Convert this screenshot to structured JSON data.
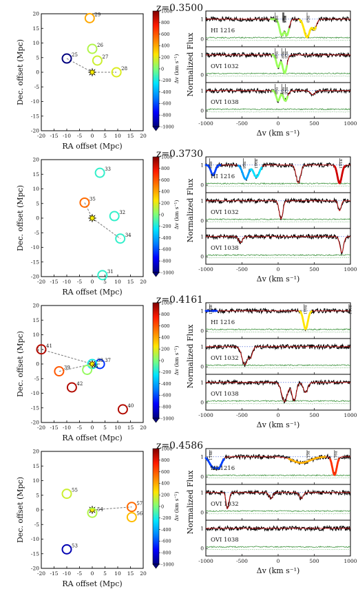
{
  "colorbar": {
    "label": "Δv (km s⁻¹)",
    "ticks": [
      1000,
      800,
      600,
      400,
      200,
      0,
      -200,
      -400,
      -600,
      -800,
      -1000
    ],
    "range": [
      -1000,
      1000
    ],
    "stops": [
      "#00007f",
      "#0000ff",
      "#0080ff",
      "#00e5ff",
      "#7dff7a",
      "#ffe500",
      "#ff7f00",
      "#ff1a00",
      "#7f0000"
    ]
  },
  "map_axes": {
    "xlabel": "RA offset (Mpc)",
    "ylabel": "Dec. offset (Mpc)",
    "xticks": [
      -20,
      -15,
      -10,
      -5,
      0,
      5,
      10,
      15,
      20
    ],
    "yticks": [
      20,
      15,
      10,
      5,
      0,
      -5,
      -10,
      -15,
      -20
    ],
    "lim": [
      -20,
      20
    ]
  },
  "spec_axes": {
    "xlabel": "Δv (km s⁻¹)",
    "ylabel": "Normalized Flux",
    "xticks": [
      -1000,
      -500,
      0,
      500,
      1000
    ],
    "xlim": [
      -1000,
      1000
    ],
    "yticks": [
      0,
      1
    ]
  },
  "chart_data": [
    {
      "type": "scatter",
      "title": "z=0.3500",
      "galaxies": [
        {
          "label": "29",
          "x": -1,
          "y": 18.5,
          "dv": 400
        },
        {
          "label": "26",
          "x": 0,
          "y": 8,
          "dv": 100
        },
        {
          "label": "27",
          "x": 2,
          "y": 4,
          "dv": 150
        },
        {
          "label": "25",
          "x": -10,
          "y": 4.7,
          "dv": -1000
        },
        {
          "label": "28",
          "x": 9.5,
          "y": 0,
          "dv": 180
        }
      ],
      "links": [
        [
          "25",
          "28"
        ]
      ],
      "spectra": [
        {
          "label": "HI 1216",
          "abs": [
            [
              50,
              0.8,
              30
            ],
            [
              120,
              0.8,
              30
            ],
            [
              400,
              0.9,
              40
            ],
            [
              500,
              0.5,
              30
            ]
          ],
          "fits": [
            {
              "range": [
                -100,
                150
              ],
              "color": "#9cff5c"
            },
            {
              "range": [
                300,
                520
              ],
              "color": "#ffe500"
            }
          ],
          "markers": [
            "88a",
            "89a",
            "90a",
            "93a",
            "85a"
          ],
          "marker_v": [
            -40,
            60,
            70,
            80,
            400
          ]
        },
        {
          "label": "OVI 1032",
          "abs": [
            [
              0,
              0.6,
              25
            ],
            [
              90,
              0.9,
              30
            ]
          ],
          "fits": [
            {
              "range": [
                -80,
                120
              ],
              "color": "#9cff5c"
            }
          ],
          "markers": [
            "86a",
            "89a",
            "93a"
          ],
          "marker_v": [
            -40,
            50,
            100
          ]
        },
        {
          "label": "OVI 1038",
          "abs": [
            [
              0,
              0.5,
              25
            ],
            [
              100,
              0.5,
              30
            ],
            [
              480,
              0.2,
              30
            ]
          ],
          "fits": [
            {
              "range": [
                -80,
                130
              ],
              "color": "#9cff5c"
            }
          ],
          "markers": [
            "86a",
            "89a",
            "93a"
          ],
          "marker_v": [
            -40,
            50,
            100
          ]
        }
      ]
    },
    {
      "type": "scatter",
      "title": "z=0.3730",
      "galaxies": [
        {
          "label": "33",
          "x": 3,
          "y": 15.5,
          "dv": -150
        },
        {
          "label": "35",
          "x": -3,
          "y": 5.3,
          "dv": 550
        },
        {
          "label": "32",
          "x": 8.7,
          "y": 0.7,
          "dv": -150
        },
        {
          "label": "34",
          "x": 11,
          "y": -7,
          "dv": -150
        },
        {
          "label": "31",
          "x": 4,
          "y": -19.5,
          "dv": -150
        }
      ],
      "links": [
        [
          "35",
          "34"
        ]
      ],
      "spectra": [
        {
          "label": "HI 1216",
          "abs": [
            [
              -900,
              0.5,
              30
            ],
            [
              -450,
              0.7,
              40
            ],
            [
              -300,
              0.6,
              40
            ],
            [
              280,
              0.9,
              30
            ],
            [
              850,
              0.9,
              30
            ]
          ],
          "fits": [
            {
              "range": [
                -1000,
                -800
              ],
              "color": "#0040ff"
            },
            {
              "range": [
                -550,
                -380
              ],
              "color": "#00a0ff"
            },
            {
              "range": [
                -380,
                -230
              ],
              "color": "#00e0ff"
            },
            {
              "range": [
                780,
                920
              ],
              "color": "#d00000"
            }
          ],
          "markers": [
            "98b",
            "99a",
            "100a",
            "101a"
          ],
          "marker_v": [
            -950,
            -480,
            -320,
            850
          ]
        },
        {
          "label": "OVI 1032",
          "abs": [
            [
              40,
              0.9,
              25
            ],
            [
              850,
              0.5,
              20
            ]
          ],
          "fits": [],
          "markers": [],
          "marker_v": []
        },
        {
          "label": "OVI 1038",
          "abs": [
            [
              -520,
              0.3,
              25
            ],
            [
              880,
              0.8,
              25
            ]
          ],
          "fits": [],
          "markers": [],
          "marker_v": []
        }
      ]
    },
    {
      "type": "scatter",
      "title": "z=0.4161",
      "galaxies": [
        {
          "label": "41",
          "x": -20,
          "y": 5,
          "dv": 900
        },
        {
          "label": "37",
          "x": 3,
          "y": 0,
          "dv": -650
        },
        {
          "label": "38",
          "x": 0,
          "y": 0,
          "dv": -200
        },
        {
          "label": "39",
          "x": -13,
          "y": -2.5,
          "dv": 600
        },
        {
          "label": "36",
          "x": -2,
          "y": -2,
          "dv": 50
        },
        {
          "label": "42",
          "x": -8,
          "y": -8,
          "dv": 900
        },
        {
          "label": "40",
          "x": 12,
          "y": -15.5,
          "dv": 900
        }
      ],
      "links": [
        [
          "41",
          "37"
        ],
        [
          "39",
          "37"
        ]
      ],
      "spectra": [
        {
          "label": "HI 1216",
          "abs": [
            [
              380,
              0.9,
              30
            ]
          ],
          "fits": [
            {
              "range": [
                -1000,
                -850
              ],
              "color": "#0030ff"
            },
            {
              "range": [
                300,
                460
              ],
              "color": "#ffe500"
            }
          ],
          "markers": [
            "108b",
            "109a",
            "110b"
          ],
          "marker_v": [
            -950,
            360,
            980
          ]
        },
        {
          "label": "OVI 1032",
          "abs": [
            [
              -460,
              0.9,
              40
            ],
            [
              -380,
              0.5,
              25
            ]
          ],
          "fits": [],
          "markers": [],
          "marker_v": []
        },
        {
          "label": "OVI 1038",
          "abs": [
            [
              90,
              0.95,
              40
            ],
            [
              220,
              0.9,
              30
            ],
            [
              380,
              0.5,
              30
            ]
          ],
          "fits": [],
          "markers": [],
          "marker_v": []
        }
      ]
    },
    {
      "type": "scatter",
      "title": "z=0.4586",
      "galaxies": [
        {
          "label": "55",
          "x": -10,
          "y": 5.5,
          "dv": 150
        },
        {
          "label": "54",
          "x": 0,
          "y": -1,
          "dv": 100
        },
        {
          "label": "57",
          "x": 15.5,
          "y": 1,
          "dv": 550
        },
        {
          "label": "56",
          "x": 15.5,
          "y": -2.5,
          "dv": 350
        },
        {
          "label": "53",
          "x": -10,
          "y": -13.5,
          "dv": -900
        }
      ],
      "links": [
        [
          "54",
          "57"
        ]
      ],
      "spectra": [
        {
          "label": "HI 1216",
          "abs": [
            [
              -900,
              0.5,
              50
            ],
            [
              -820,
              0.5,
              40
            ],
            [
              320,
              0.3,
              120
            ],
            [
              780,
              0.9,
              30
            ]
          ],
          "fits": [
            {
              "range": [
                -1000,
                -750
              ],
              "color": "#0040ff"
            },
            {
              "range": [
                150,
                650
              ],
              "color": "#ffb000"
            },
            {
              "range": [
                720,
                840
              ],
              "color": "#ff3000"
            }
          ],
          "markers": [
            "114b",
            "115a",
            "116a"
          ],
          "marker_v": [
            -950,
            400,
            780
          ]
        },
        {
          "label": "OVI 1032",
          "abs": [
            [
              -700,
              0.8,
              20
            ],
            [
              -100,
              0.3,
              25
            ],
            [
              320,
              0.3,
              25
            ]
          ],
          "fits": [],
          "markers": [],
          "marker_v": []
        },
        {
          "label": "OVI 1038",
          "abs": [],
          "fits": [],
          "markers": [],
          "marker_v": []
        }
      ]
    }
  ]
}
